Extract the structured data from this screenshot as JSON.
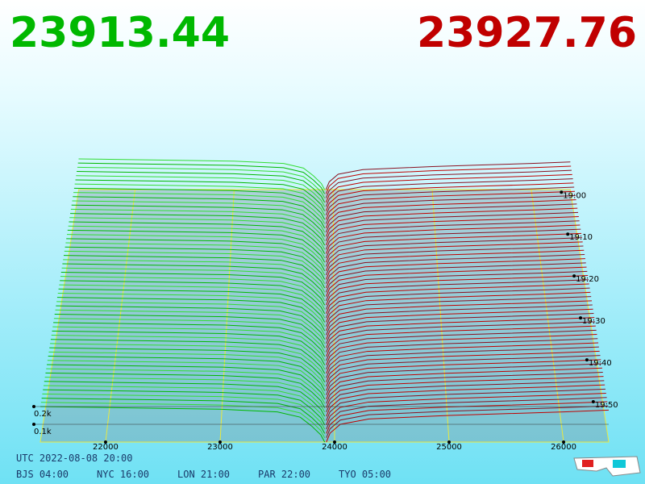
{
  "chart_data": {
    "type": "depth3d",
    "bid_price": "23913.44",
    "ask_price": "23927.76",
    "bid_color": "#00b800",
    "ask_color": "#c00000",
    "xlim": [
      21430,
      26394
    ],
    "xticks": [
      22000,
      23000,
      24000,
      25000,
      26000
    ],
    "ylim": [
      0,
      250
    ],
    "yticks": [
      {
        "value": 100,
        "label": "0.1k"
      },
      {
        "value": 200,
        "label": "0.2k"
      }
    ],
    "time_ticks": [
      "19:00",
      "19:10",
      "19:20",
      "19:30",
      "19:40",
      "19:50"
    ],
    "bids": {
      "x": [
        21430,
        22500,
        23000,
        23500,
        23700,
        23800,
        23880,
        23913.44
      ],
      "values": [
        200,
        190,
        185,
        170,
        140,
        90,
        40,
        0
      ]
    },
    "asks": {
      "x": [
        23927.76,
        23960,
        24050,
        24300,
        25000,
        25500,
        26000,
        26394
      ],
      "values": [
        0,
        50,
        100,
        130,
        150,
        160,
        170,
        180
      ]
    },
    "utc_label": "UTC 2022-08-08 20:00",
    "zones": [
      "BJS 04:00",
      "NYC 16:00",
      "LON 21:00",
      "PAR 22:00",
      "TYO 05:00"
    ]
  }
}
